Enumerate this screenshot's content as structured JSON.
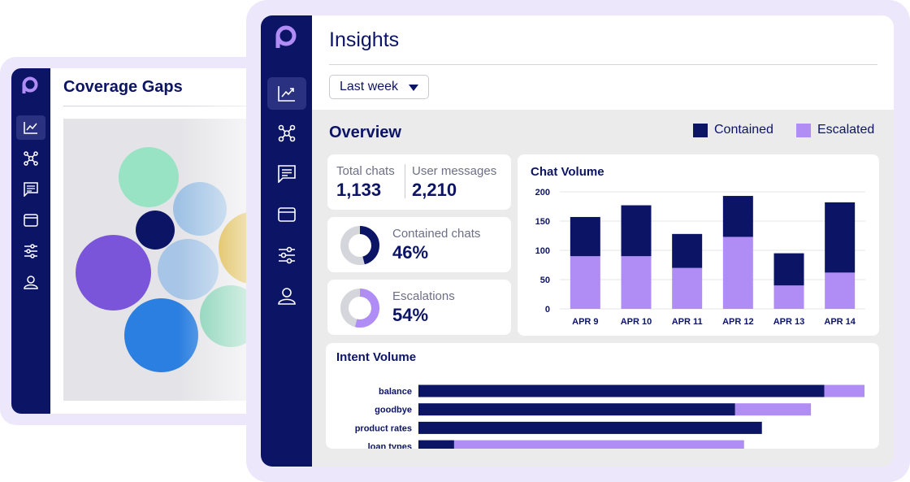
{
  "back_window": {
    "title": "Coverage Gaps",
    "nav_icons": [
      "chart-icon",
      "network-icon",
      "message-icon",
      "card-icon",
      "sliders-icon",
      "user-icon"
    ],
    "bubble_colors": [
      "#97e3c3",
      "#9fc2e4",
      "#0c1466",
      "#7a55d9",
      "#a7c5e6",
      "#d4a820",
      "#2b7fe0",
      "#7ecfb0"
    ]
  },
  "front_window": {
    "title": "Insights",
    "date_filter": {
      "selected": "Last week"
    },
    "nav_icons": [
      "chart-icon",
      "network-icon",
      "message-icon",
      "card-icon",
      "sliders-icon",
      "user-icon"
    ],
    "overview": {
      "title": "Overview",
      "legend": [
        {
          "label": "Contained",
          "color": "#0c1466"
        },
        {
          "label": "Escalated",
          "color": "#b08cf5"
        }
      ],
      "kpis": {
        "total_chats": {
          "label": "Total chats",
          "value": "1,133"
        },
        "user_messages": {
          "label": "User messages",
          "value": "2,210"
        },
        "contained": {
          "label": "Contained chats",
          "value": "46%",
          "fraction": 0.46
        },
        "escalations": {
          "label": "Escalations",
          "value": "54%",
          "fraction": 0.54
        }
      }
    }
  },
  "colors": {
    "navy": "#0c1466",
    "lavender": "#b08cf5",
    "donut_track": "#d5d5dc"
  },
  "chart_data": [
    {
      "type": "bar",
      "stacked": true,
      "title": "Chat Volume",
      "categories": [
        "APR 9",
        "APR 10",
        "APR 11",
        "APR 12",
        "APR 13",
        "APR 14"
      ],
      "series": [
        {
          "name": "Escalated",
          "values": [
            90,
            90,
            70,
            123,
            40,
            62
          ]
        },
        {
          "name": "Contained",
          "values": [
            67,
            87,
            58,
            70,
            55,
            120
          ]
        }
      ],
      "ylim": [
        0,
        200
      ],
      "yticks": [
        0,
        50,
        100,
        150,
        200
      ],
      "grid": true
    },
    {
      "type": "bar",
      "orientation": "horizontal",
      "stacked": true,
      "title": "Intent Volume",
      "categories": [
        "balance",
        "goodbye",
        "product rates",
        "loan types"
      ],
      "series": [
        {
          "name": "Contained",
          "values": [
            91,
            71,
            77,
            8
          ]
        },
        {
          "name": "Escalated",
          "values": [
            9,
            17,
            0,
            65
          ]
        }
      ],
      "xlim": [
        0,
        100
      ]
    }
  ]
}
